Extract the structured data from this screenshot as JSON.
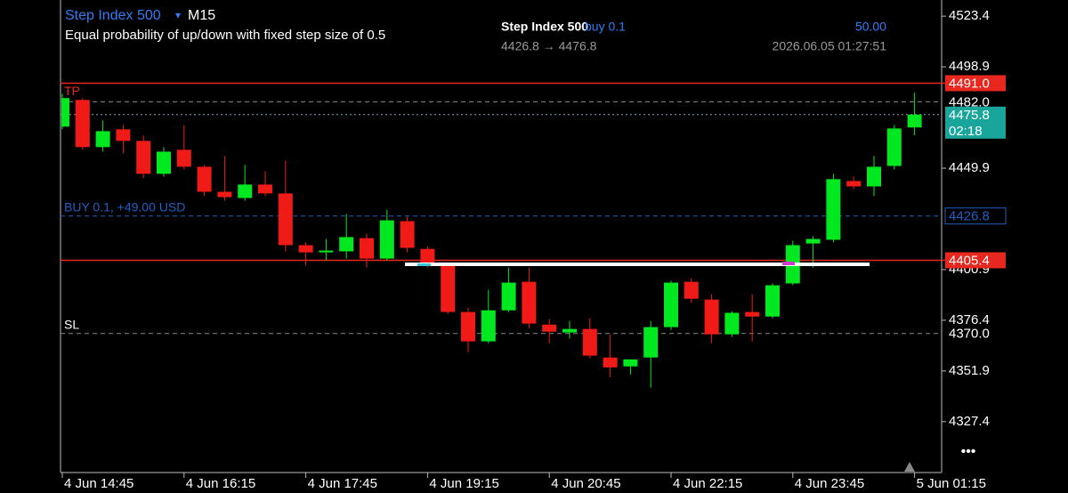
{
  "header": {
    "symbol": "Step Index 500",
    "dropdown": "▾",
    "timeframe": "M15",
    "description": "Equal probability of up/down with fixed step size of 0.5"
  },
  "trade": {
    "symbol": "Step Index 500",
    "side": "buy 0.1",
    "profit": "50.00",
    "prices": "4426.8 → 4476.8",
    "time": "2026.06.05 01:27:51"
  },
  "more": "•••",
  "chart_data": {
    "type": "candlestick",
    "categories": [
      "4 Jun 14:45",
      null,
      null,
      null,
      null,
      null,
      "4 Jun 16:15",
      null,
      null,
      null,
      null,
      null,
      "4 Jun 17:45",
      null,
      null,
      null,
      null,
      null,
      "4 Jun 19:15",
      null,
      null,
      null,
      null,
      null,
      "4 Jun 20:45",
      null,
      null,
      null,
      null,
      null,
      "4 Jun 22:15",
      null,
      null,
      null,
      null,
      null,
      "4 Jun 23:45",
      null,
      null,
      null,
      null,
      null,
      "5 Jun 01:15"
    ],
    "open": [
      4470.0,
      4482.9,
      4460.1,
      4468.7,
      4463.1,
      4447.2,
      4458.8,
      4450.6,
      4438.5,
      4435.5,
      4442.0,
      4437.7,
      4412.7,
      4409.2,
      4409.7,
      4416.1,
      4406.2,
      4424.3,
      4410.9,
      4402.8,
      4380.4,
      4366.2,
      4381.2,
      4395.0,
      4374.3,
      4370.5,
      4372.2,
      4358.4,
      4354.1,
      4358.4,
      4373.1,
      4395.0,
      4386.4,
      4369.6,
      4380.4,
      4378.2,
      4394.2,
      4413.5,
      4415.3,
      4443.7,
      4441.1,
      4451.0,
      4469.6
    ],
    "high": [
      4485.9,
      4483.8,
      4473.0,
      4470.8,
      4465.7,
      4460.1,
      4470.8,
      4451.5,
      4455.8,
      4451.5,
      4448.4,
      4453.6,
      4414.0,
      4415.7,
      4427.8,
      4418.3,
      4429.9,
      4426.5,
      4412.2,
      4403.6,
      4382.5,
      4391.2,
      4401.9,
      4401.9,
      4376.9,
      4376.1,
      4377.4,
      4369.6,
      4357.5,
      4376.1,
      4395.5,
      4396.8,
      4389.0,
      4380.8,
      4389.0,
      4394.2,
      4414.8,
      4417.0,
      4447.2,
      4445.8,
      4455.8,
      4470.8,
      4486.3
    ],
    "low": [
      4468.7,
      4458.8,
      4457.9,
      4457.1,
      4445.0,
      4445.8,
      4449.3,
      4436.4,
      4434.2,
      4434.2,
      4436.4,
      4409.7,
      4402.8,
      4405.4,
      4406.2,
      4401.9,
      4405.4,
      4409.2,
      4401.9,
      4379.5,
      4361.0,
      4365.3,
      4380.4,
      4372.6,
      4365.3,
      4367.5,
      4358.0,
      4348.9,
      4350.2,
      4343.8,
      4371.8,
      4384.7,
      4365.3,
      4368.3,
      4366.2,
      4377.4,
      4393.3,
      4401.9,
      4414.0,
      4439.8,
      4436.4,
      4449.3,
      4465.7
    ],
    "close": [
      4483.8,
      4460.1,
      4467.8,
      4463.1,
      4447.2,
      4457.9,
      4450.6,
      4438.5,
      4435.9,
      4442.0,
      4437.7,
      4412.7,
      4409.2,
      4410.1,
      4416.6,
      4406.2,
      4424.7,
      4411.4,
      4402.8,
      4380.4,
      4366.2,
      4381.2,
      4394.6,
      4374.8,
      4370.9,
      4372.2,
      4359.3,
      4353.6,
      4357.5,
      4373.1,
      4394.6,
      4386.8,
      4369.6,
      4380.0,
      4378.2,
      4393.3,
      4412.7,
      4415.7,
      4444.6,
      4441.1,
      4450.6,
      4469.1,
      4475.8
    ],
    "up_color": "#00e81f",
    "down_color": "#f01a16",
    "ylim": [
      4302.8,
      4531.2
    ],
    "yticks": [
      4523.4,
      4498.9,
      4449.9,
      4400.9,
      4376.4,
      4351.9,
      4327.4
    ],
    "levels": [
      {
        "name": "TP",
        "price": {
          "value": 4491,
          "label": "4491.0"
        },
        "color": "#e8281f",
        "style": "solid",
        "label_style": "filled"
      },
      {
        "price": {
          "value": 4482,
          "label": "4482.0"
        },
        "color": "#8a8a8a",
        "style": "dashed",
        "label_style": "plain"
      },
      {
        "price": 4475.8,
        "color": "#7fa8b8",
        "style": "dotted",
        "label_style": "filled",
        "box_color": "#1aa59a",
        "countdown": "02:18"
      },
      {
        "name": "BUY 0.1, +49.00 USD",
        "price": 4426.8,
        "color": "#1f5fc4",
        "style": "dashed",
        "label_style": "outline"
      },
      {
        "price": 4405.4,
        "color": "#e8281f",
        "style": "solid",
        "label_style": "filled"
      },
      {
        "name": "SL",
        "price": {
          "value": 4370,
          "label": "4370.0"
        },
        "color": "#8a8a8a",
        "style": "dashed",
        "label_style": "plain"
      }
    ]
  }
}
